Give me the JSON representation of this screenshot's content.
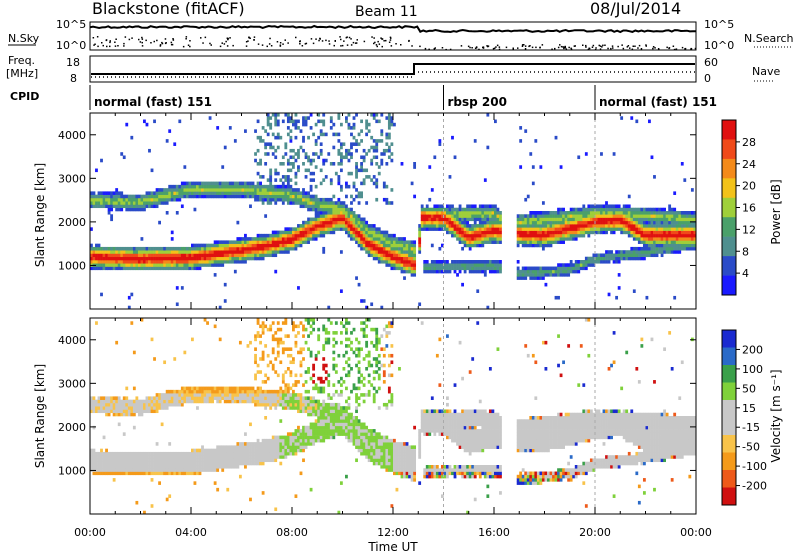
{
  "header": {
    "station": "Blackstone (fitACF)",
    "beam": "Beam 11",
    "date": "08/Jul/2014"
  },
  "summary": {
    "nsky_label": "N.Sky",
    "nsky_ticks": [
      "10^5",
      "10^0"
    ],
    "nsearch_label": "N.Search",
    "nsearch_ticks": [
      "10^5",
      "10^0"
    ],
    "freq_label_line1": "Freq.",
    "freq_label_line2": "[MHz]",
    "freq_ticks": [
      "18",
      "8"
    ],
    "nave_label": "Nave",
    "nave_ticks": [
      "60",
      "0"
    ],
    "cpid_label": "CPID",
    "cpid_segments": [
      {
        "label": "normal (fast) 151",
        "start_h": 0.0,
        "end_h": 14.0
      },
      {
        "label": "rbsp 200",
        "start_h": 14.0,
        "end_h": 20.0
      },
      {
        "label": "normal (fast) 151",
        "start_h": 20.0,
        "end_h": 24.0
      }
    ]
  },
  "colors": {
    "power_scale": [
      "#1a1aff",
      "#2a4bc8",
      "#4f8f8f",
      "#4aa06a",
      "#9fcf3a",
      "#f2c21a",
      "#f48a1a",
      "#f04a1a",
      "#e01010"
    ],
    "velocity_scale": [
      "#d01010",
      "#ee5a1a",
      "#f49a1a",
      "#f8c34a",
      "#c8c8c8",
      "#c8c8c8",
      "#7fd13a",
      "#3aa04a",
      "#2a6ac8",
      "#1a2ad0"
    ]
  },
  "chart_data": [
    {
      "type": "heatmap",
      "title": "",
      "xlabel": "",
      "ylabel": "Slant Range [km]",
      "x_ticks": [
        "00:00",
        "04:00",
        "08:00",
        "12:00",
        "16:00",
        "20:00",
        "00:00"
      ],
      "xlim_hours": [
        0,
        24
      ],
      "ylim": [
        0,
        4500
      ],
      "y_ticks": [
        1000,
        2000,
        3000,
        4000
      ],
      "colorbar_label": "Power [dB]",
      "colorbar_ticks": [
        "28",
        "24",
        "20",
        "16",
        "12",
        "8",
        "4"
      ],
      "colorbar_range": [
        0,
        30
      ],
      "echo_bands": [
        {
          "name": "main",
          "points": [
            [
              0,
              1200
            ],
            [
              2,
              1150
            ],
            [
              4,
              1180
            ],
            [
              6,
              1350
            ],
            [
              7,
              1450
            ],
            [
              8,
              1600
            ],
            [
              9,
              1900
            ],
            [
              10,
              2100
            ],
            [
              11,
              1500
            ],
            [
              12,
              1200
            ],
            [
              13,
              1000
            ],
            [
              13.1,
              2100
            ],
            [
              14,
              2100
            ],
            [
              15,
              1650
            ],
            [
              16,
              1800
            ],
            [
              16.5,
              1750
            ],
            [
              18,
              1700
            ],
            [
              20,
              2000
            ],
            [
              21,
              2050
            ],
            [
              22,
              1700
            ],
            [
              24,
              1700
            ]
          ]
        },
        {
          "name": "upper",
          "points": [
            [
              0,
              2500
            ],
            [
              2,
              2450
            ],
            [
              4,
              2750
            ],
            [
              6,
              2750
            ],
            [
              8,
              2600
            ],
            [
              9,
              2400
            ],
            [
              10,
              2300
            ],
            [
              11,
              1800
            ],
            [
              12,
              1500
            ],
            [
              13,
              1350
            ],
            [
              13.1,
              2150
            ],
            [
              16,
              2200
            ],
            [
              16.5,
              1950
            ],
            [
              18,
              2050
            ],
            [
              20,
              2200
            ],
            [
              22,
              2150
            ],
            [
              24,
              2050
            ]
          ]
        },
        {
          "name": "lower",
          "points": [
            [
              13.2,
              950
            ],
            [
              16,
              1000
            ],
            [
              17,
              800
            ],
            [
              19,
              900
            ],
            [
              20,
              1150
            ],
            [
              22,
              1300
            ],
            [
              24,
              1500
            ]
          ]
        }
      ]
    },
    {
      "type": "heatmap",
      "title": "",
      "xlabel": "Time UT",
      "ylabel": "Slant Range [km]",
      "x_ticks": [
        "00:00",
        "04:00",
        "08:00",
        "12:00",
        "16:00",
        "20:00",
        "00:00"
      ],
      "xlim_hours": [
        0,
        24
      ],
      "ylim": [
        0,
        4500
      ],
      "y_ticks": [
        1000,
        2000,
        3000,
        4000
      ],
      "colorbar_label": "Velocity [m s⁻¹]",
      "colorbar_ticks": [
        "200",
        "100",
        "50",
        "15",
        "-15",
        "-50",
        "-100",
        "-200"
      ],
      "colorbar_range": [
        -250,
        250
      ],
      "velocity_notes": {
        "dominant": "ground scatter gray (-15 to 15)",
        "evening_positive": "green 8-12 UT",
        "morning_negative": "orange 0-9 UT"
      }
    }
  ]
}
